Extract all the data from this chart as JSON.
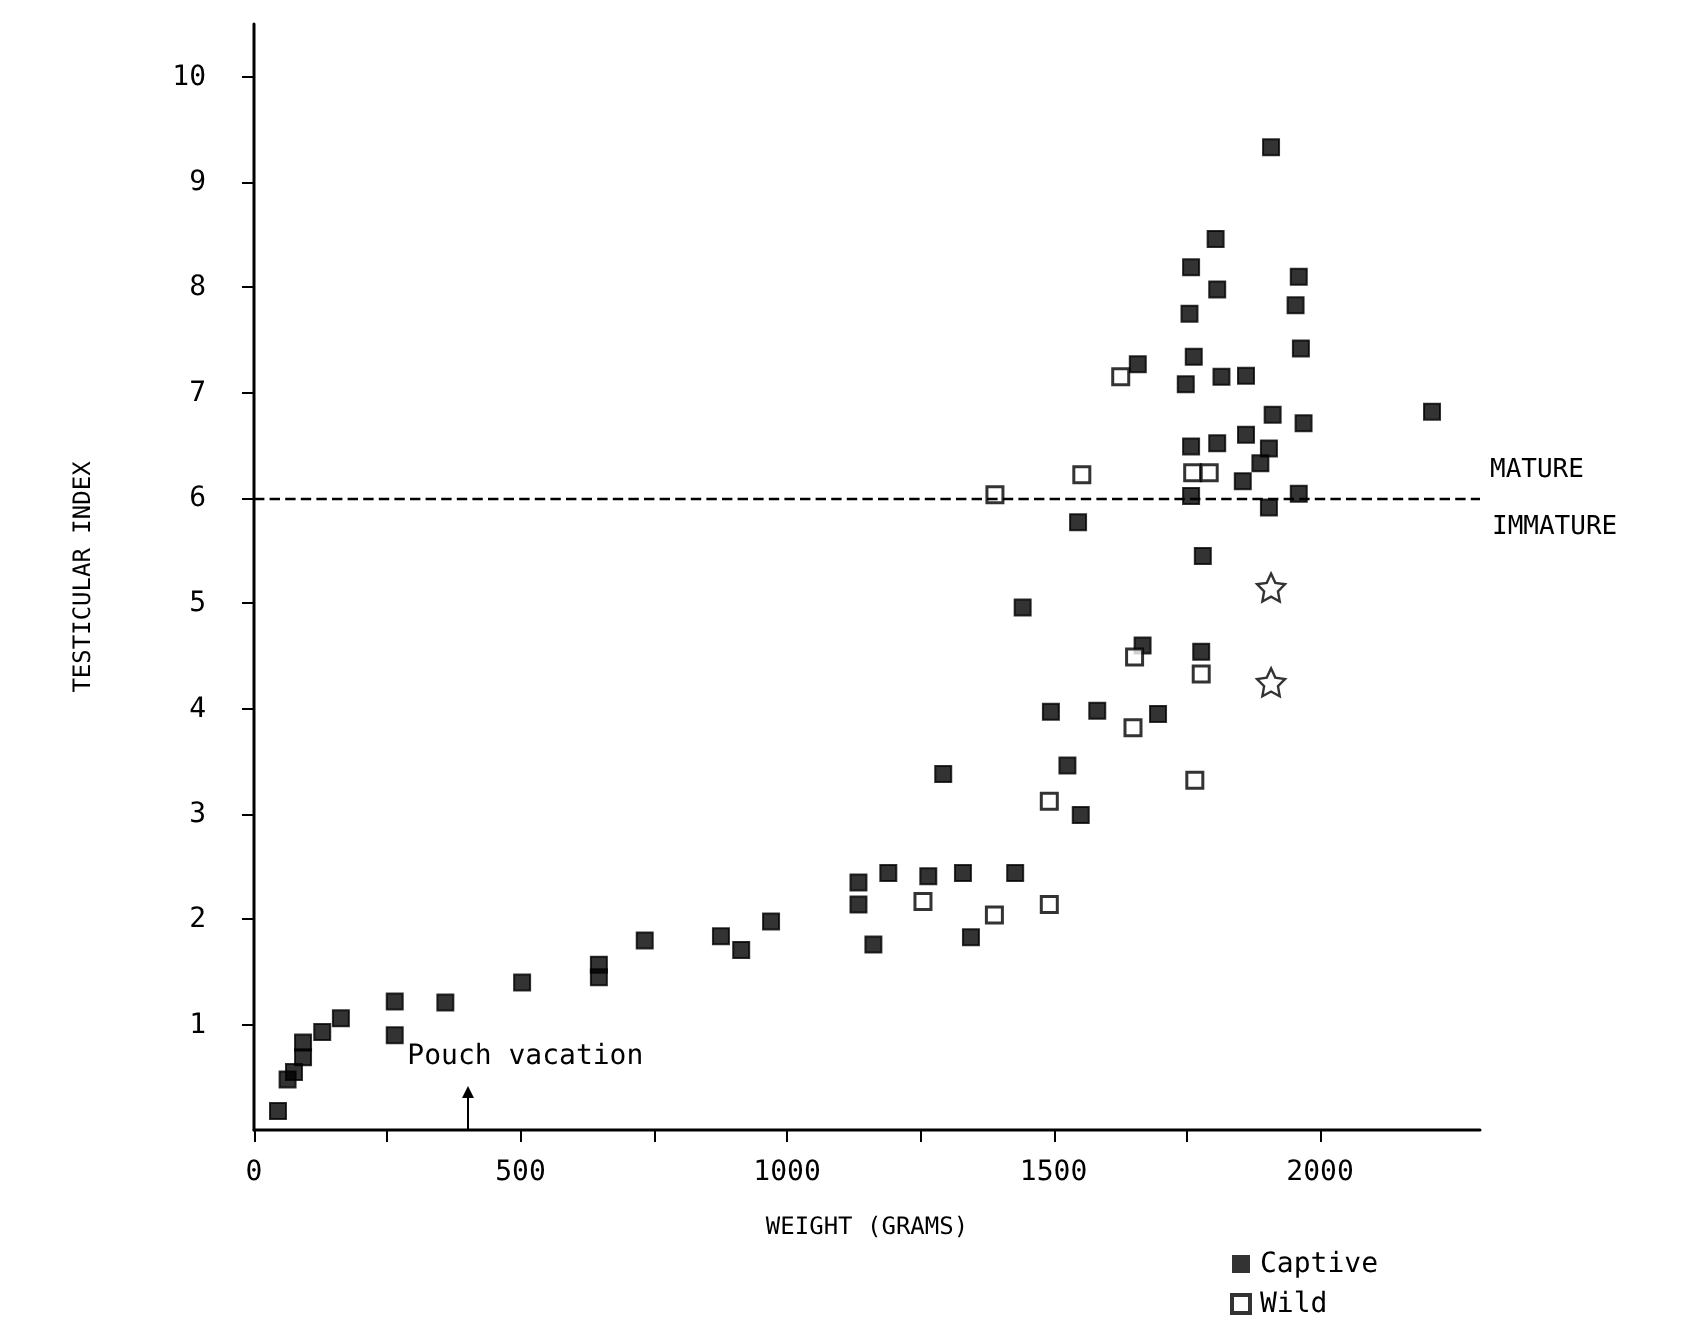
{
  "chart_data": {
    "type": "scatter",
    "xlabel": "WEIGHT (GRAMS)",
    "ylabel": "TESTICULAR INDEX",
    "xlim": [
      0,
      2300
    ],
    "ylim": [
      0,
      10.5
    ],
    "xticks": [
      0,
      {
        "value": 250,
        "label": null
      },
      500,
      {
        "value": 750,
        "label": null
      },
      1000,
      {
        "value": 1250,
        "label": null
      },
      1500,
      {
        "value": 1750,
        "label": null
      },
      2000
    ],
    "yticks": [
      1,
      2,
      3,
      4,
      5,
      6,
      7,
      8,
      9,
      10
    ],
    "legend": "bottom right",
    "grid": false,
    "series": [
      {
        "name": "Captive",
        "color": "#000000",
        "marker": "square",
        "x": [
          45,
          63,
          75,
          92,
          92,
          128,
          163,
          264,
          264,
          359,
          503,
          647,
          647,
          733,
          876,
          914,
          970,
          1546,
          1780,
          1442,
          1667,
          1777,
          1495,
          1582,
          1696,
          1293,
          1526,
          1551,
          1134,
          1134,
          1190,
          1265,
          1330,
          1428,
          1162,
          1345,
          1908,
          1804,
          1758,
          1807,
          1960,
          1954,
          1755,
          1964,
          1658,
          1763,
          1748,
          1815,
          1861,
          2210,
          1911,
          1969,
          1758,
          1807,
          1861,
          1904,
          1888,
          1855,
          1758,
          1960,
          1904
        ],
        "values": [
          0.18,
          0.48,
          0.55,
          0.69,
          0.83,
          0.93,
          1.06,
          1.22,
          0.9,
          1.21,
          1.4,
          1.57,
          1.45,
          1.8,
          1.84,
          1.71,
          1.98,
          5.77,
          5.45,
          4.96,
          4.6,
          4.54,
          3.97,
          3.98,
          3.95,
          3.38,
          3.46,
          2.99,
          2.35,
          2.14,
          2.44,
          2.41,
          2.44,
          2.44,
          1.76,
          1.83,
          9.33,
          8.46,
          8.19,
          7.98,
          8.1,
          7.83,
          7.75,
          7.42,
          7.27,
          7.34,
          7.08,
          7.15,
          7.16,
          6.82,
          6.79,
          6.71,
          6.49,
          6.52,
          6.6,
          6.47,
          6.33,
          6.16,
          6.02,
          6.04,
          5.91
        ]
      },
      {
        "name": "Wild",
        "color": "#000000",
        "marker": "square-open",
        "x": [
          1652,
          1777,
          1649,
          1492,
          1765,
          1255,
          1389,
          1492,
          1390,
          1626,
          1761,
          1792,
          1553
        ],
        "values": [
          4.49,
          4.33,
          3.82,
          3.12,
          3.32,
          2.17,
          2.04,
          2.14,
          6.03,
          7.15,
          6.24,
          6.24,
          6.22
        ]
      },
      {
        "color": "#000000",
        "marker": "star",
        "x": [
          1908,
          1908
        ],
        "values": [
          5.15,
          4.25
        ]
      }
    ],
    "ref_lines": [
      {
        "axis": "y",
        "value": 6,
        "label": "MATURE",
        "line_style": "dashed"
      }
    ],
    "annotations": [
      "IMMATURE",
      "Pouch vacation"
    ]
  }
}
